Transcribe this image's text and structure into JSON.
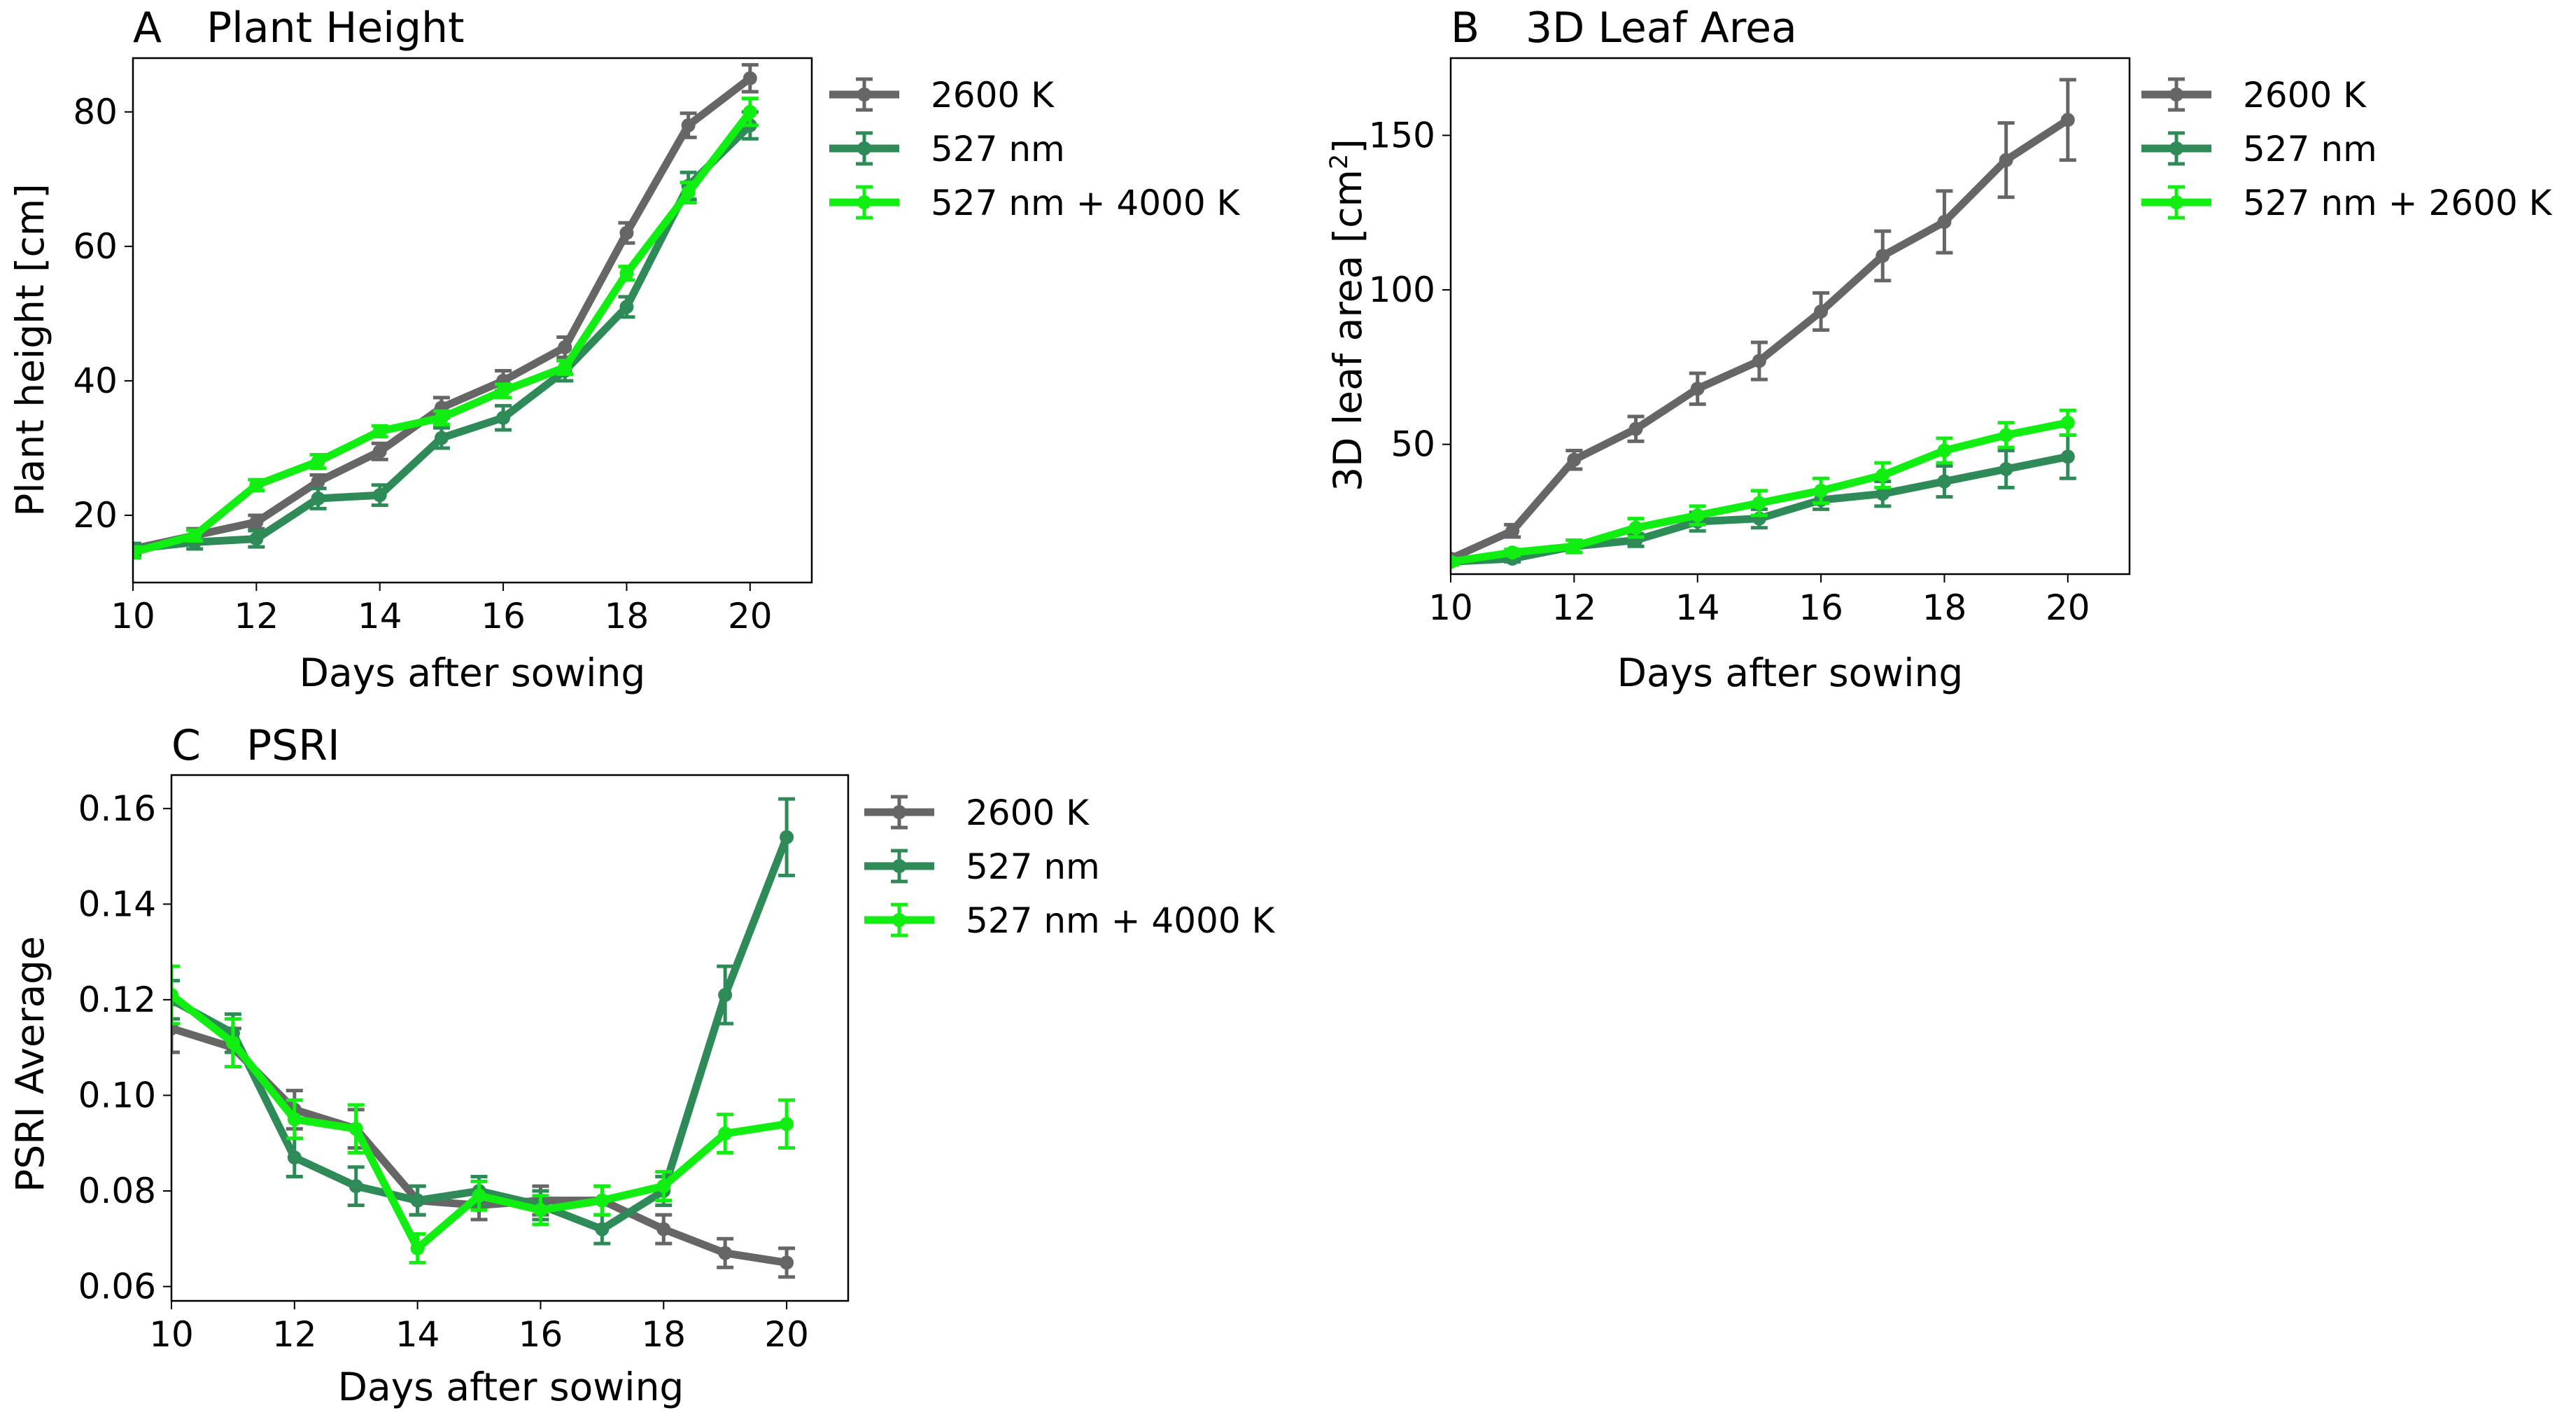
{
  "chart_data": [
    {
      "id": "A",
      "type": "line",
      "panel_letter": "A",
      "title": "Plant Height",
      "xlabel": "Days after sowing",
      "ylabel": "Plant height [cm]",
      "ylabel_sup": "",
      "ylabel_after": "",
      "xlim": [
        10,
        21
      ],
      "ylim": [
        10,
        88
      ],
      "xticks": [
        10,
        12,
        14,
        16,
        18,
        20
      ],
      "yticks": [
        20,
        40,
        60,
        80
      ],
      "y_decimals": 0,
      "legend_position": "outside-right-top",
      "series": [
        {
          "name": "2600 K",
          "color": "#666666",
          "x": [
            10,
            11,
            12,
            13,
            14,
            15,
            16,
            17,
            18,
            19,
            20
          ],
          "y": [
            15,
            17,
            19,
            25,
            29.5,
            36,
            40,
            45,
            62,
            78,
            85
          ],
          "err": [
            0.8,
            1,
            1,
            1,
            1.2,
            1.5,
            1.5,
            1.5,
            1.5,
            1.8,
            2
          ]
        },
        {
          "name": "527 nm",
          "color": "#2e8b57",
          "x": [
            10,
            11,
            12,
            13,
            14,
            15,
            16,
            17,
            18,
            19,
            20
          ],
          "y": [
            15,
            16,
            16.5,
            22.5,
            23,
            31.5,
            34.5,
            41.5,
            51,
            69,
            78
          ],
          "err": [
            0.8,
            1,
            1.2,
            1.5,
            1.5,
            1.5,
            1.8,
            1.5,
            1.5,
            2,
            2
          ]
        },
        {
          "name": "527 nm + 4000 K",
          "color": "#11ee11",
          "x": [
            10,
            11,
            12,
            13,
            14,
            15,
            16,
            17,
            18,
            19,
            20
          ],
          "y": [
            14.5,
            17,
            24.5,
            28,
            32.5,
            34.5,
            38.5,
            42,
            56,
            68,
            80
          ],
          "err": [
            0.8,
            0.8,
            0.8,
            1,
            0.8,
            1,
            1,
            1,
            1,
            1.5,
            2
          ]
        }
      ]
    },
    {
      "id": "B",
      "type": "line",
      "panel_letter": "B",
      "title": "3D Leaf Area",
      "xlabel": "Days after sowing",
      "ylabel": "3D leaf area [cm",
      "ylabel_sup": "2",
      "ylabel_after": "]",
      "xlim": [
        10,
        21
      ],
      "ylim": [
        8,
        175
      ],
      "xticks": [
        10,
        12,
        14,
        16,
        18,
        20
      ],
      "yticks": [
        50,
        100,
        150
      ],
      "y_decimals": 0,
      "legend_position": "outside-right-top",
      "series": [
        {
          "name": "2600 K",
          "color": "#666666",
          "x": [
            10,
            11,
            12,
            13,
            14,
            15,
            16,
            17,
            18,
            19,
            20
          ],
          "y": [
            13,
            22,
            45,
            55,
            68,
            77,
            93,
            111,
            122,
            142,
            155
          ],
          "err": [
            1,
            2,
            3,
            4,
            5,
            6,
            6,
            8,
            10,
            12,
            13
          ]
        },
        {
          "name": "527 nm",
          "color": "#2e8b57",
          "x": [
            10,
            11,
            12,
            13,
            14,
            15,
            16,
            17,
            18,
            19,
            20
          ],
          "y": [
            12,
            13,
            17,
            19,
            25,
            26,
            32,
            34,
            38,
            42,
            46
          ],
          "err": [
            1,
            1,
            2,
            2,
            3,
            3,
            3,
            4,
            5,
            6,
            7
          ]
        },
        {
          "name": "527 nm + 2600 K",
          "color": "#11ee11",
          "x": [
            10,
            11,
            12,
            13,
            14,
            15,
            16,
            17,
            18,
            19,
            20
          ],
          "y": [
            12,
            15,
            17,
            23,
            27,
            31,
            35,
            40,
            48,
            53,
            57
          ],
          "err": [
            1,
            1,
            2,
            3,
            3,
            4,
            4,
            4,
            4,
            4,
            4
          ]
        }
      ]
    },
    {
      "id": "C",
      "type": "line",
      "panel_letter": "C",
      "title": "PSRI",
      "xlabel": "Days after sowing",
      "ylabel": "PSRI Average",
      "ylabel_sup": "",
      "ylabel_after": "",
      "xlim": [
        10,
        21
      ],
      "ylim": [
        0.057,
        0.167
      ],
      "xticks": [
        10,
        12,
        14,
        16,
        18,
        20
      ],
      "yticks": [
        0.06,
        0.08,
        0.1,
        0.12,
        0.14,
        0.16
      ],
      "y_decimals": 2,
      "legend_position": "outside-right-top",
      "series": [
        {
          "name": "2600 K",
          "color": "#666666",
          "x": [
            10,
            11,
            12,
            13,
            14,
            15,
            16,
            17,
            18,
            19,
            20
          ],
          "y": [
            0.114,
            0.11,
            0.097,
            0.093,
            0.078,
            0.077,
            0.078,
            0.078,
            0.072,
            0.067,
            0.065
          ],
          "err": [
            0.005,
            0.004,
            0.004,
            0.004,
            0.003,
            0.003,
            0.003,
            0.003,
            0.003,
            0.003,
            0.003
          ]
        },
        {
          "name": "527 nm",
          "color": "#2e8b57",
          "x": [
            10,
            11,
            12,
            13,
            14,
            15,
            16,
            17,
            18,
            19,
            20
          ],
          "y": [
            0.12,
            0.113,
            0.087,
            0.081,
            0.078,
            0.08,
            0.077,
            0.072,
            0.08,
            0.121,
            0.154
          ],
          "err": [
            0.004,
            0.004,
            0.004,
            0.004,
            0.003,
            0.003,
            0.003,
            0.003,
            0.003,
            0.006,
            0.008
          ]
        },
        {
          "name": "527 nm + 4000 K",
          "color": "#11ee11",
          "x": [
            10,
            11,
            12,
            13,
            14,
            15,
            16,
            17,
            18,
            19,
            20
          ],
          "y": [
            0.121,
            0.111,
            0.095,
            0.093,
            0.068,
            0.079,
            0.076,
            0.078,
            0.081,
            0.092,
            0.094
          ],
          "err": [
            0.006,
            0.005,
            0.004,
            0.005,
            0.003,
            0.003,
            0.003,
            0.003,
            0.003,
            0.004,
            0.005
          ]
        }
      ]
    }
  ]
}
